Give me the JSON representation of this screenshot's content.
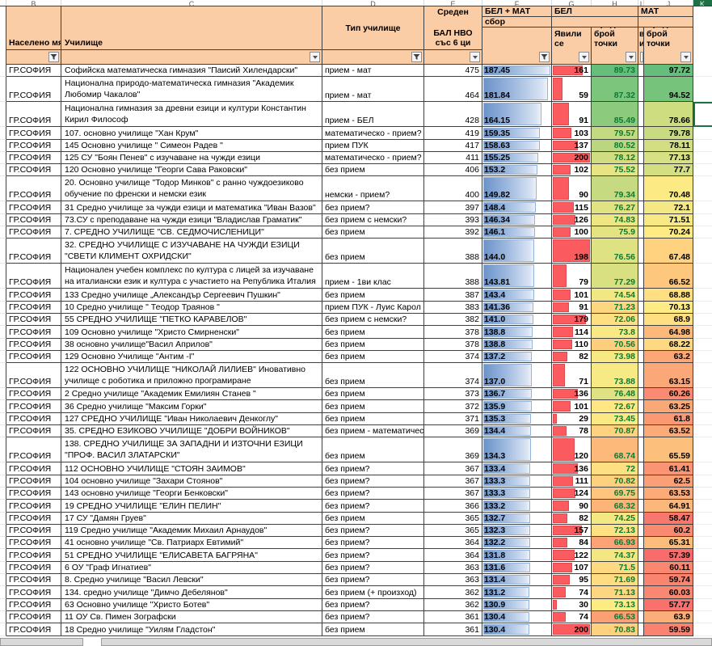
{
  "sheet": {
    "column_letters": [
      "B",
      "C",
      "D",
      "E",
      "F",
      "G",
      "H",
      "I",
      "J",
      "K"
    ],
    "selected_column_letter": "K",
    "header": {
      "settlement": "Населено мя",
      "school": "Училище",
      "school_type": "Тип училище",
      "avg_score_line1": "Среден",
      "avg_score_line2": "БАЛ НВО със 6 ци",
      "group_belmat": "БЕЛ + МАТ",
      "sum_label": "сбор",
      "group_bel": "БЕЛ",
      "group_mat": "МАТ",
      "appeared": "Явили се",
      "avg_points": "Среден брой точки",
      "hidden_sliver": "в и"
    },
    "filters": [
      {
        "col": "B",
        "icon": "funnel-icon"
      },
      {
        "col": "C",
        "icon": "arrow-icon"
      },
      {
        "col": "D",
        "icon": "funnel-icon"
      },
      {
        "col": "E",
        "icon": "arrow-icon"
      },
      {
        "col": "F",
        "icon": "funnel-icon"
      },
      {
        "col": "G",
        "icon": "arrow-icon"
      },
      {
        "col": "H",
        "icon": "arrow-icon"
      },
      {
        "col": "I",
        "icon": "sliver"
      },
      {
        "col": "J",
        "icon": "arrow-icon"
      }
    ],
    "default_settlement": "ГР.СОФИЯ",
    "selection": {
      "row_index": 2,
      "column": "K"
    },
    "scales": {
      "bar_max": 187.45,
      "appeared_max": 200,
      "color_low": "#F8696B",
      "color_mid": "#FFEB84",
      "color_high": "#63BE7B",
      "bel_anchors": {
        "min": 62,
        "mid": 73,
        "max": 90
      },
      "mat_anchors": {
        "min": 57,
        "mid": 70,
        "max": 98
      }
    },
    "colors": {
      "header_fill": "#FBCDA6",
      "data_bar_blue": "#638EC6",
      "data_bar_red": "#FB5A5E",
      "selection_green": "#1E7145",
      "bel_font_green": "#0B7A33"
    }
  },
  "rows": [
    {
      "school": "Софийска математическа гимназия \"Паисий Хилендарски\"",
      "type": "прием - мат",
      "bal": 475,
      "sum": "187.45",
      "app": 161,
      "bel": "89.73",
      "mat": "97.72",
      "lines": 1
    },
    {
      "school": "Национална природо-математическа гимназия \"Академик Любомир Чакалов\"",
      "type": "прием - мат",
      "bal": 464,
      "sum": "181.84",
      "app": 59,
      "bel": "87.32",
      "mat": "94.52",
      "lines": 2
    },
    {
      "school": "Национална гимназия за древни езици и култури Константин Кирил Философ",
      "type": "прием - БЕЛ",
      "bal": 428,
      "sum": "164.15",
      "app": 91,
      "bel": "85.49",
      "mat": "78.66",
      "lines": 2
    },
    {
      "school": "107. основно училище \"Хан Крум\"",
      "type": "математическо - прием?",
      "bal": 419,
      "sum": "159.35",
      "app": 103,
      "bel": "79.57",
      "mat": "79.78",
      "lines": 1
    },
    {
      "school": "145 Основно училище \" Симеон Радев \"",
      "type": "прием ПУК",
      "bal": 417,
      "sum": "158.63",
      "app": 137,
      "bel": "80.52",
      "mat": "78.11",
      "lines": 1
    },
    {
      "school": "125 СУ \"Боян Пенев\" с изучаване на чужди езици",
      "type": "математическо - прием?",
      "bal": 411,
      "sum": "155.25",
      "app": 200,
      "bel": "78.12",
      "mat": "77.13",
      "lines": 1
    },
    {
      "school": "120 Основно училище \"Георги Сава Раковски\"",
      "type": "без прием",
      "bal": 406,
      "sum": "153.2",
      "app": 102,
      "bel": "75.52",
      "mat": "77.7",
      "lines": 1
    },
    {
      "school": "20. Основно училище \"Тодор Минков\" с ранно чуждоезиково обучение по френски и немски език",
      "type": "немски - прием?",
      "bal": 400,
      "sum": "149.82",
      "app": 90,
      "bel": "79.34",
      "mat": "70.48",
      "lines": 2
    },
    {
      "school": "31 Средно училище за чужди езици и математика \"Иван Вазов\"",
      "type": "без прием?",
      "bal": 397,
      "sum": "148.4",
      "app": 115,
      "bel": "76.27",
      "mat": "72.1",
      "lines": 1
    },
    {
      "school": "73.СУ с преподаване на чужди езици \"Владислав Граматик\"",
      "type": "без прием с немски?",
      "bal": 393,
      "sum": "146.34",
      "app": 126,
      "bel": "74.83",
      "mat": "71.51",
      "lines": 1
    },
    {
      "school": "7. СРЕДНО УЧИЛИЩЕ \"СВ. СЕДМОЧИСЛЕНИЦИ\"",
      "type": "без прием",
      "bal": 392,
      "sum": "146.1",
      "app": 100,
      "bel": "75.9",
      "mat": "70.24",
      "lines": 1
    },
    {
      "school": "32. СРЕДНО УЧИЛИЩЕ С ИЗУЧАВАНЕ НА ЧУЖДИ ЕЗИЦИ \"СВЕТИ КЛИМЕНТ ОХРИДСКИ\"",
      "type": "без прием",
      "bal": 388,
      "sum": "144.0",
      "app": 198,
      "bel": "76.56",
      "mat": "67.48",
      "lines": 2
    },
    {
      "school": "Национален учебен комплекс по култура с лицей за изучаване на италиански език и култура с участието на Република Италия",
      "type": "прием - 1ви клас",
      "bal": 388,
      "sum": "143.81",
      "app": 79,
      "bel": "77.29",
      "mat": "66.52",
      "lines": 2
    },
    {
      "school": "133 Средно училище „Александър Сергеевич Пушкин\"",
      "type": "без прием",
      "bal": 387,
      "sum": "143.4",
      "app": 101,
      "bel": "74.54",
      "mat": "68.88",
      "lines": 1
    },
    {
      "school": "10 Средно училище \" Теодор Траянов \"",
      "type": "прием ПУК - Луис Карол",
      "bal": 383,
      "sum": "141.36",
      "app": 91,
      "bel": "71.23",
      "mat": "70.13",
      "lines": 1
    },
    {
      "school": "55 СРЕДНО УЧИЛИЩЕ \"ПЕТКО КАРАВЕЛОВ\"",
      "type": "без прием с немски?",
      "bal": 382,
      "sum": "141.0",
      "app": 179,
      "bel": "72.06",
      "mat": "68.9",
      "lines": 1
    },
    {
      "school": "109 Основно училище \"Христо Смирненски\"",
      "type": "без прием",
      "bal": 378,
      "sum": "138.8",
      "app": 114,
      "bel": "73.8",
      "mat": "64.98",
      "lines": 1
    },
    {
      "school": "38 основно училище\"Васил Априлов\"",
      "type": "без прием",
      "bal": 378,
      "sum": "138.8",
      "app": 110,
      "bel": "70.56",
      "mat": "68.22",
      "lines": 1
    },
    {
      "school": "129 Основно Училище \"Антим -I\"",
      "type": "без прием",
      "bal": 374,
      "sum": "137.2",
      "app": 82,
      "bel": "73.98",
      "mat": "63.2",
      "lines": 1
    },
    {
      "school": "122 ОСНОВНО УЧИЛИЩЕ \"НИКОЛАЙ ЛИЛИЕВ\" Иновативно училище с роботика и приложно програмиране",
      "type": "без прием",
      "bal": 374,
      "sum": "137.0",
      "app": 71,
      "bel": "73.88",
      "mat": "63.15",
      "lines": 2
    },
    {
      "school": "2 Средно училище \"Академик Емилиян Станев \"",
      "type": "без прием",
      "bal": 373,
      "sum": "136.7",
      "app": 136,
      "bel": "76.48",
      "mat": "60.26",
      "lines": 1
    },
    {
      "school": "36 Средно училище \"Максим Горки\"",
      "type": "без прием",
      "bal": 372,
      "sum": "135.9",
      "app": 101,
      "bel": "72.67",
      "mat": "63.25",
      "lines": 1
    },
    {
      "school": "127 СРЕДНО УЧИЛИЩЕ \"Иван Николаевич Денкоглу\"",
      "type": "без прием",
      "bal": 371,
      "sum": "135.3",
      "app": 29,
      "bel": "73.45",
      "mat": "61.8",
      "lines": 1
    },
    {
      "school": "35. СРЕДНО ЕЗИКОВО УЧИЛИЩЕ \"ДОБРИ ВОЙНИКОВ\"",
      "type": "без прием - математическ",
      "bal": 369,
      "sum": "134.4",
      "app": 78,
      "bel": "70.87",
      "mat": "63.52",
      "lines": 1
    },
    {
      "school": "138. СРЕДНО УЧИЛИЩЕ ЗА ЗАПАДНИ И ИЗТОЧНИ ЕЗИЦИ \"ПРОФ. ВАСИЛ ЗЛАТАРСКИ\"",
      "type": "без прием",
      "bal": 369,
      "sum": "134.3",
      "app": 120,
      "bel": "68.74",
      "mat": "65.59",
      "lines": 2
    },
    {
      "school": "112 ОСНОВНО УЧИЛИЩЕ \"СТОЯН ЗАИМОВ\"",
      "type": "без прием?",
      "bal": 367,
      "sum": "133.4",
      "app": 136,
      "bel": "72",
      "mat": "61.41",
      "lines": 1
    },
    {
      "school": "104 основно училище \"Захари Стоянов\"",
      "type": "без прием?",
      "bal": 367,
      "sum": "133.3",
      "app": 111,
      "bel": "70.82",
      "mat": "62.5",
      "lines": 1
    },
    {
      "school": "143 основно училище \"Георги Бенковски\"",
      "type": "без прием?",
      "bal": 367,
      "sum": "133.3",
      "app": 124,
      "bel": "69.75",
      "mat": "63.53",
      "lines": 1
    },
    {
      "school": "19 СРЕДНО УЧИЛИЩЕ \"ЕЛИН ПЕЛИН\"",
      "type": "без прием?",
      "bal": 366,
      "sum": "133.2",
      "app": 90,
      "bel": "68.32",
      "mat": "64.91",
      "lines": 1
    },
    {
      "school": "17 СУ \"Дамян Груев\"",
      "type": "без прием",
      "bal": 365,
      "sum": "132.7",
      "app": 82,
      "bel": "74.25",
      "mat": "58.47",
      "lines": 1
    },
    {
      "school": "119 Средно училище \"Академик Михаил Арнаудов\"",
      "type": "без прием?",
      "bal": 365,
      "sum": "132.3",
      "app": 157,
      "bel": "72.13",
      "mat": "60.2",
      "lines": 1
    },
    {
      "school": "41 основно училище \"Св. Патриарх Евтимий\"",
      "type": "без прием?",
      "bal": 364,
      "sum": "132.2",
      "app": 84,
      "bel": "66.93",
      "mat": "65.31",
      "lines": 1
    },
    {
      "school": "51 СРЕДНО УЧИЛИЩЕ \"ЕЛИСАВЕТА БАГРЯНА\"",
      "type": "без прием?",
      "bal": 364,
      "sum": "131.8",
      "app": 122,
      "bel": "74.37",
      "mat": "57.39",
      "lines": 1
    },
    {
      "school": "6 ОУ \"Граф Игнатиев\"",
      "type": "без прием?",
      "bal": 363,
      "sum": "131.6",
      "app": 107,
      "bel": "71.5",
      "mat": "60.11",
      "lines": 1
    },
    {
      "school": "8. Средно училище \"Васил Левски\"",
      "type": "без прием?",
      "bal": 363,
      "sum": "131.4",
      "app": 95,
      "bel": "71.69",
      "mat": "59.74",
      "lines": 1
    },
    {
      "school": "134. средно училище \"Димчо Дебелянов\"",
      "type": "без прием (+ произход)",
      "bal": 362,
      "sum": "131.2",
      "app": 74,
      "bel": "71.13",
      "mat": "60.03",
      "lines": 1
    },
    {
      "school": "63 Основно училище \"Христо Ботев\"",
      "type": "без прием?",
      "bal": 362,
      "sum": "130.9",
      "app": 30,
      "bel": "73.13",
      "mat": "57.77",
      "lines": 1
    },
    {
      "school": "11 ОУ Св. Пимен Зографски",
      "type": "без прием?",
      "bal": 361,
      "sum": "130.4",
      "app": 74,
      "bel": "66.53",
      "mat": "63.9",
      "lines": 1
    },
    {
      "school": "18 Средно училище \"Уилям Гладстон\"",
      "type": "без прием",
      "bal": 361,
      "sum": "130.4",
      "app": 200,
      "bel": "70.83",
      "mat": "59.59",
      "lines": 1
    }
  ]
}
